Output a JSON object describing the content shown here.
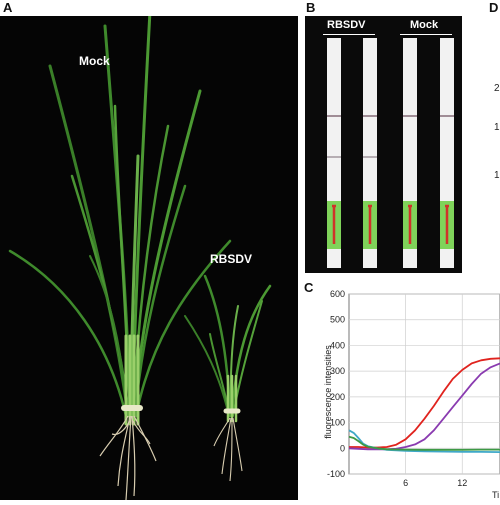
{
  "panels": {
    "a": {
      "letter": "A",
      "mock_label": "Mock",
      "rbsdv_label": "RBSDV"
    },
    "b": {
      "letter": "B",
      "rbsdv_label": "RBSDV",
      "mock_label": "Mock"
    },
    "c": {
      "letter": "C"
    },
    "d": {
      "letter": "D",
      "partial_tick_labels": [
        "2",
        "1",
        "1"
      ]
    }
  },
  "chart_data": {
    "type": "line",
    "xlabel": "Ti",
    "ylabel": "fluorescence intensities",
    "xlim": [
      0,
      16
    ],
    "ylim": [
      -100,
      600
    ],
    "x_ticks": [
      6,
      12
    ],
    "y_ticks": [
      600,
      500,
      400,
      300,
      200,
      100,
      0,
      -100
    ],
    "grid": true,
    "series": [
      {
        "color": "#e0231e",
        "x": [
          0,
          1,
          2,
          3,
          4,
          5,
          6,
          7,
          8,
          9,
          10,
          11,
          12,
          13,
          14,
          15,
          16
        ],
        "y": [
          5,
          5,
          3,
          3,
          5,
          14,
          35,
          70,
          115,
          165,
          220,
          270,
          305,
          330,
          342,
          348,
          350
        ]
      },
      {
        "color": "#8a3bb0",
        "x": [
          0,
          1,
          2,
          3,
          4,
          5,
          6,
          7,
          8,
          9,
          10,
          11,
          12,
          13,
          14,
          15,
          16
        ],
        "y": [
          0,
          -2,
          -4,
          -4,
          -4,
          -2,
          5,
          15,
          35,
          70,
          115,
          160,
          205,
          250,
          290,
          315,
          330
        ]
      },
      {
        "color": "#3fa8c8",
        "x": [
          0,
          0.5,
          1,
          1.5,
          2,
          3,
          4,
          6,
          8,
          10,
          12,
          14,
          16
        ],
        "y": [
          70,
          60,
          40,
          18,
          8,
          0,
          -6,
          -10,
          -12,
          -13,
          -14,
          -14,
          -15
        ]
      },
      {
        "color": "#3c9a45",
        "x": [
          0,
          0.5,
          1,
          1.5,
          2,
          3,
          4,
          6,
          8,
          10,
          12,
          14,
          16
        ],
        "y": [
          45,
          40,
          28,
          14,
          6,
          0,
          -4,
          -5,
          -6,
          -6,
          -6,
          -5,
          -5
        ]
      }
    ]
  }
}
